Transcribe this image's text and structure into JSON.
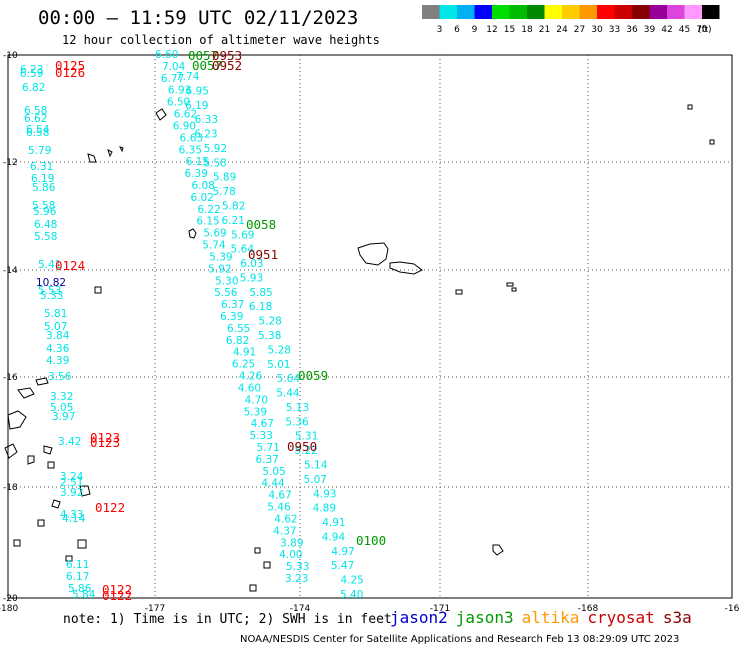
{
  "header": {
    "title": "00:00 – 11:59 UTC 02/11/2023",
    "subtitle": "12 hour collection of altimeter wave heights"
  },
  "legend": {
    "bins": [
      "3",
      "6",
      "9",
      "12",
      "15",
      "18",
      "21",
      "24",
      "27",
      "30",
      "33",
      "36",
      "39",
      "42",
      "45",
      "70"
    ],
    "unit": "(ft)",
    "colors": [
      "#808080",
      "#00e5e5",
      "#00b0f0",
      "#0000ff",
      "#00dd00",
      "#00bb00",
      "#008800",
      "#ffff00",
      "#ffcc00",
      "#ff9900",
      "#ff0000",
      "#cc0000",
      "#880000",
      "#990099",
      "#dd44dd",
      "#ff99ff",
      "#000000"
    ]
  },
  "map": {
    "lon_ticks": [
      "-180",
      "-177",
      "-174",
      "-171",
      "-168",
      "-16"
    ],
    "lat_ticks": [
      "-10",
      "-12",
      "-14",
      "-16",
      "-18",
      "-20"
    ]
  },
  "footer": {
    "note": "note: 1) Time is in UTC; 2) SWH is in feet",
    "satellites": [
      {
        "name": "jason2",
        "color": "#0000cc"
      },
      {
        "name": "jason3",
        "color": "#009900"
      },
      {
        "name": "altika",
        "color": "#ff9900"
      },
      {
        "name": "cryosat",
        "color": "#cc0000"
      },
      {
        "name": "s3a",
        "color": "#880000"
      }
    ],
    "credit": "NOAA/NESDIS Center for Satellite Applications and Research    Feb 13 08:29:09 UTC 2023"
  },
  "time_labels": [
    {
      "text": "0125",
      "color": "#ff0000"
    },
    {
      "text": "0126",
      "color": "#ff0000"
    },
    {
      "text": "0124",
      "color": "#ff0000"
    },
    {
      "text": "0123",
      "color": "#ff0000"
    },
    {
      "text": "0123",
      "color": "#ff0000"
    },
    {
      "text": "0122",
      "color": "#ff0000"
    },
    {
      "text": "0122",
      "color": "#ff0000"
    },
    {
      "text": "0122",
      "color": "#ff0000"
    },
    {
      "text": "0058",
      "color": "#009900"
    },
    {
      "text": "0059",
      "color": "#009900"
    },
    {
      "text": "0100",
      "color": "#009900"
    },
    {
      "text": "0057",
      "color": "#009900"
    },
    {
      "text": "0057",
      "color": "#009900"
    },
    {
      "text": "0951",
      "color": "#880000"
    },
    {
      "text": "0950",
      "color": "#880000"
    },
    {
      "text": "0953",
      "color": "#880000"
    },
    {
      "text": "0952",
      "color": "#880000"
    }
  ],
  "left_track": [
    "6.23",
    "6.59",
    "6.82",
    "6.58",
    "6.62",
    "6.54",
    "6.58",
    "5.79",
    "6.31",
    "6.19",
    "5.86",
    "5.58",
    "5.96",
    "6.48",
    "5.58",
    "5.41",
    "10.82",
    "5.53",
    "5.33",
    "5.81",
    "5.07",
    "3.84",
    "4.36",
    "4.39",
    "3.56",
    "3.32",
    "5.05",
    "3.97",
    "3.42",
    "3.24",
    "2.51",
    "3.92",
    "4.33",
    "4.14",
    "6.11",
    "6.17",
    "5.86",
    "5.84"
  ],
  "left_track_highlight": [
    {
      "index": 16,
      "color": "#000099"
    }
  ],
  "mid_track": [
    "6.60",
    "7.04",
    "6.77",
    "6.93",
    "6.50",
    "6.62",
    "6.90",
    "6.63",
    "6.35",
    "6.15",
    "6.39",
    "6.08",
    "6.02",
    "6.22",
    "6.15",
    "5.69",
    "5.74",
    "5.39",
    "5.92",
    "5.30",
    "5.56",
    "6.37",
    "6.39",
    "6.55",
    "6.82",
    "4.91",
    "6.25",
    "4.26",
    "4.60",
    "4.70",
    "5.39",
    "4.67",
    "5.33",
    "5.71",
    "6.37",
    "5.05",
    "4.44",
    "4.67",
    "5.46",
    "4.62",
    "4.37",
    "3.89",
    "4.00",
    "5.33",
    "3.23"
  ],
  "right_track": [
    "7.74",
    "6.95",
    "6.19",
    "6.33",
    "6.23",
    "5.92",
    "5.58",
    "5.89",
    "5.78",
    "5.82",
    "6.21",
    "5.69",
    "5.64",
    "6.03",
    "5.93",
    "5.85",
    "6.18",
    "5.28",
    "5.38",
    "5.28",
    "5.01",
    "5.64",
    "5.44",
    "5.13",
    "5.36",
    "5.31",
    "5.22",
    "5.14",
    "5.07",
    "4.93",
    "4.89",
    "4.91",
    "4.94",
    "4.97",
    "5.47",
    "4.25",
    "5.40"
  ]
}
